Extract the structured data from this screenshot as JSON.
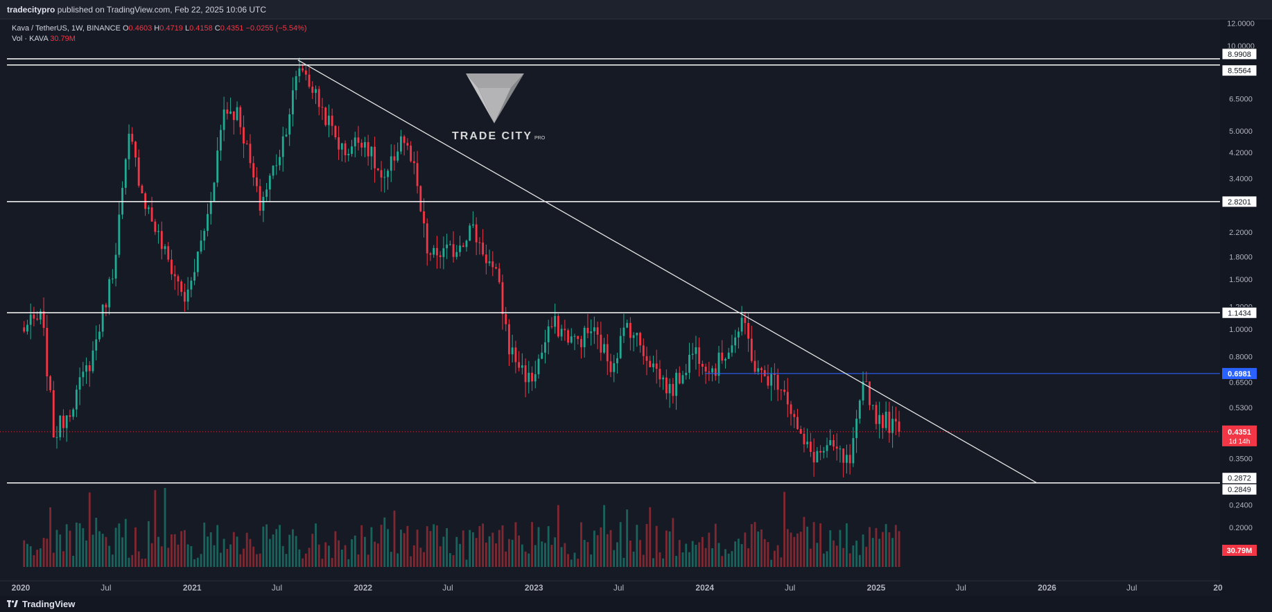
{
  "header": {
    "publisher": "tradecitypro",
    "published_text": "published on TradingView.com, Feb 22, 2025 10:06 UTC"
  },
  "legend": {
    "symbol": "Kava / TetherUS, 1W, BINANCE",
    "o_label": "O",
    "o_value": "0.4603",
    "h_label": "H",
    "h_value": "0.4719",
    "l_label": "L",
    "l_value": "0.4158",
    "c_label": "C",
    "c_value": "0.4351",
    "change": "−0.0255 (−5.54%)",
    "volume_label": "Vol · KAVA",
    "volume_value": "30.79M"
  },
  "watermark": {
    "text": "TRADE CITY",
    "suffix": "PRO"
  },
  "footer": {
    "brand": "TradingView"
  },
  "colors": {
    "up": "#22ab94",
    "down": "#f23645",
    "background": "#161a25",
    "level_line": "#ffffff",
    "blue_level": "#2962ff"
  },
  "chart_data": {
    "type": "candlestick",
    "scale": "log",
    "interval": "1W",
    "y_ticks": [
      "12.0000",
      "10.0000",
      "8.0000",
      "6.5000",
      "5.0000",
      "4.2000",
      "3.4000",
      "2.2000",
      "1.8000",
      "1.5000",
      "1.2000",
      "1.0000",
      "0.8000",
      "0.6500",
      "0.5300",
      "0.3500",
      "0.2400",
      "0.2000"
    ],
    "y_tick_values": [
      12,
      10,
      8,
      6.5,
      5,
      4.2,
      3.4,
      2.2,
      1.8,
      1.5,
      1.2,
      1.0,
      0.8,
      0.65,
      0.53,
      0.35,
      0.24,
      0.2
    ],
    "x_ticks": [
      "2020",
      "Jul",
      "2021",
      "Jul",
      "2022",
      "Jul",
      "2023",
      "Jul",
      "2024",
      "Jul",
      "2025",
      "Jul",
      "2026",
      "Jul",
      "20"
    ],
    "x_tick_dates": [
      "2020-01-01",
      "2020-07-01",
      "2021-01-01",
      "2021-07-01",
      "2022-01-01",
      "2022-07-01",
      "2023-01-01",
      "2023-07-01",
      "2024-01-01",
      "2024-07-01",
      "2025-01-01",
      "2025-07-01",
      "2026-01-01",
      "2026-07-01",
      "2027-01-01"
    ],
    "horizontal_levels": [
      {
        "label": "8.9908",
        "value": 8.9908
      },
      {
        "label": "8.5564",
        "value": 8.5564
      },
      {
        "label": "2.8201",
        "value": 2.8201
      },
      {
        "label": "1.1434",
        "value": 1.1434
      },
      {
        "label": "0.2872",
        "value": 0.2872
      },
      {
        "label": "0.2849",
        "value": 0.2849
      }
    ],
    "blue_level": {
      "label": "0.6981",
      "value": 0.6981,
      "from": "2024-01-01"
    },
    "last_price": {
      "label": "0.4351",
      "value": 0.4351,
      "countdown": "1d 14h"
    },
    "volume_label": "30.79M",
    "trendline": {
      "from": {
        "date": "2021-08-15",
        "value": 8.9
      },
      "to": {
        "date": "2025-12-10",
        "value": 0.2872
      }
    },
    "anchor_closes": [
      [
        "2020-01-01",
        1.0
      ],
      [
        "2020-02-15",
        1.1
      ],
      [
        "2020-03-12",
        0.42
      ],
      [
        "2020-04-20",
        0.55
      ],
      [
        "2020-06-01",
        0.8
      ],
      [
        "2020-07-15",
        1.6
      ],
      [
        "2020-08-20",
        4.8
      ],
      [
        "2020-09-20",
        2.9
      ],
      [
        "2020-11-01",
        1.9
      ],
      [
        "2020-12-20",
        1.25
      ],
      [
        "2021-02-05",
        2.6
      ],
      [
        "2021-03-10",
        6.0
      ],
      [
        "2021-04-10",
        5.8
      ],
      [
        "2021-05-25",
        2.7
      ],
      [
        "2021-07-10",
        4.4
      ],
      [
        "2021-08-20",
        8.7
      ],
      [
        "2021-10-01",
        6.2
      ],
      [
        "2021-11-20",
        4.2
      ],
      [
        "2022-01-01",
        4.8
      ],
      [
        "2022-02-15",
        3.2
      ],
      [
        "2022-03-25",
        4.9
      ],
      [
        "2022-04-20",
        3.6
      ],
      [
        "2022-05-20",
        1.8
      ],
      [
        "2022-07-15",
        1.9
      ],
      [
        "2022-08-20",
        2.3
      ],
      [
        "2022-10-15",
        1.5
      ],
      [
        "2022-11-10",
        0.85
      ],
      [
        "2022-12-25",
        0.65
      ],
      [
        "2023-02-10",
        1.05
      ],
      [
        "2023-04-01",
        0.9
      ],
      [
        "2023-05-05",
        1.0
      ],
      [
        "2023-06-15",
        0.75
      ],
      [
        "2023-07-20",
        1.05
      ],
      [
        "2023-09-01",
        0.8
      ],
      [
        "2023-10-20",
        0.6
      ],
      [
        "2023-12-10",
        0.85
      ],
      [
        "2024-01-20",
        0.72
      ],
      [
        "2024-03-25",
        1.05
      ],
      [
        "2024-04-20",
        0.7
      ],
      [
        "2024-06-15",
        0.65
      ],
      [
        "2024-07-25",
        0.4
      ],
      [
        "2024-08-20",
        0.36
      ],
      [
        "2024-10-01",
        0.38
      ],
      [
        "2024-11-05",
        0.33
      ],
      [
        "2024-11-25",
        0.5
      ],
      [
        "2024-12-08",
        0.68
      ],
      [
        "2024-12-28",
        0.5
      ],
      [
        "2025-01-20",
        0.48
      ],
      [
        "2025-02-22",
        0.4351
      ]
    ]
  }
}
